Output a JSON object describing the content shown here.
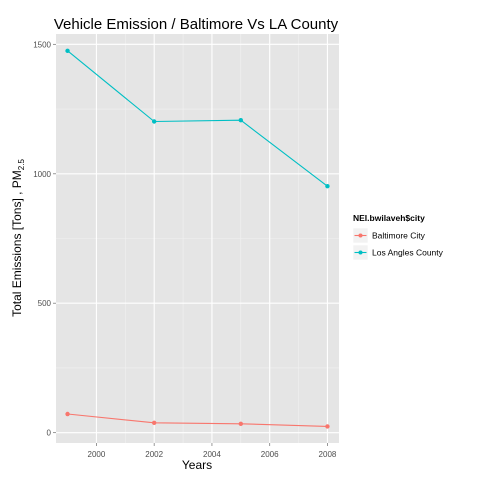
{
  "chart_data": {
    "type": "line",
    "title": "Vehicle Emission / Baltimore Vs LA County",
    "xlabel": "Years",
    "ylabel": "Total Emissions [Tons] , PM",
    "ylabel_sub": "2.5",
    "xlim": [
      1998.6,
      2008.4
    ],
    "ylim": [
      -40,
      1540
    ],
    "x_ticks": [
      2000,
      2002,
      2004,
      2006,
      2008
    ],
    "y_ticks": [
      0,
      500,
      1000,
      1500
    ],
    "grid": true,
    "legend": {
      "title": "NEI.bwilaveh$city",
      "placement": "right"
    },
    "series": [
      {
        "name": "Baltimore City",
        "color": "#F8766D",
        "x": [
          1999,
          2002,
          2005,
          2008
        ],
        "y": [
          72,
          38,
          34,
          24
        ]
      },
      {
        "name": "Los Angles County",
        "color": "#00BFC4",
        "x": [
          1999,
          2002,
          2005,
          2008
        ],
        "y": [
          1475,
          1202,
          1207,
          952
        ]
      }
    ]
  }
}
